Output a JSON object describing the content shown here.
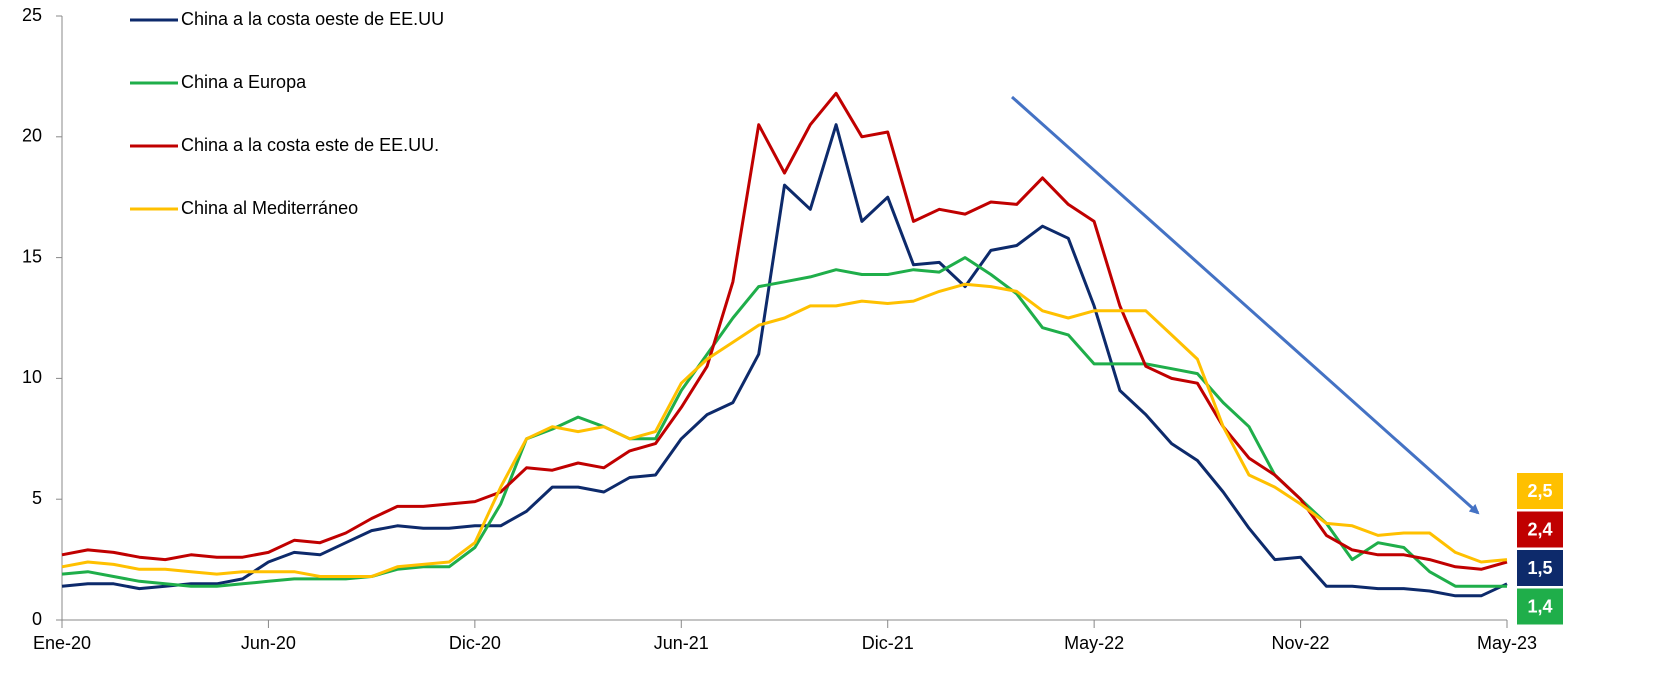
{
  "chart_data": {
    "type": "line",
    "categories": [
      "Ene-20",
      null,
      null,
      null,
      null,
      null,
      null,
      null,
      "Jun-20",
      null,
      null,
      null,
      null,
      null,
      null,
      null,
      "Dic-20",
      null,
      null,
      null,
      null,
      null,
      null,
      null,
      "Jun-21",
      null,
      null,
      null,
      null,
      null,
      null,
      null,
      "Dic-21",
      null,
      null,
      null,
      null,
      null,
      null,
      null,
      "May-22",
      null,
      null,
      null,
      null,
      null,
      null,
      null,
      "Nov-22",
      null,
      null,
      null,
      null,
      null,
      null,
      null,
      "May-23"
    ],
    "series": [
      {
        "name": "China a la costa oeste de EE.UU",
        "color": "#0d2a6b",
        "end_label": "1,5",
        "values": [
          1.4,
          1.5,
          1.5,
          1.3,
          1.4,
          1.5,
          1.5,
          1.7,
          2.4,
          2.8,
          2.7,
          3.2,
          3.7,
          3.9,
          3.8,
          3.8,
          3.9,
          3.9,
          4.5,
          5.5,
          5.5,
          5.3,
          5.9,
          6.0,
          7.5,
          8.5,
          9.0,
          11,
          18,
          17,
          20.5,
          16.5,
          17.5,
          14.7,
          14.8,
          13.8,
          15.3,
          15.5,
          16.3,
          15.8,
          13.0,
          9.5,
          8.5,
          7.3,
          6.6,
          5.3,
          3.8,
          2.5,
          2.6,
          1.4,
          1.4,
          1.3,
          1.3,
          1.2,
          1.0,
          1.0,
          1.5
        ]
      },
      {
        "name": "China a Europa",
        "color": "#1fae4a",
        "end_label": "1,4",
        "values": [
          1.9,
          2.0,
          1.8,
          1.6,
          1.5,
          1.4,
          1.4,
          1.5,
          1.6,
          1.7,
          1.7,
          1.7,
          1.8,
          2.1,
          2.2,
          2.2,
          3.0,
          4.8,
          7.5,
          7.9,
          8.4,
          8.0,
          7.5,
          7.5,
          9.5,
          11,
          12.5,
          13.8,
          14.0,
          14.2,
          14.5,
          14.3,
          14.3,
          14.5,
          14.4,
          15.0,
          14.3,
          13.5,
          12.1,
          11.8,
          10.6,
          10.6,
          10.6,
          10.4,
          10.2,
          9.0,
          8.0,
          6.0,
          5.0,
          4.0,
          2.5,
          3.2,
          3.0,
          2.0,
          1.4,
          1.4,
          1.4
        ]
      },
      {
        "name": "China a la costa este de EE.UU.",
        "color": "#c00000",
        "end_label": "2,4",
        "values": [
          2.7,
          2.9,
          2.8,
          2.6,
          2.5,
          2.7,
          2.6,
          2.6,
          2.8,
          3.3,
          3.2,
          3.6,
          4.2,
          4.7,
          4.7,
          4.8,
          4.9,
          5.3,
          6.3,
          6.2,
          6.5,
          6.3,
          7.0,
          7.3,
          8.8,
          10.5,
          14,
          20.5,
          18.5,
          20.5,
          21.8,
          20.0,
          20.2,
          16.5,
          17.0,
          16.8,
          17.3,
          17.2,
          18.3,
          17.2,
          16.5,
          13.0,
          10.5,
          10.0,
          9.8,
          8.0,
          6.7,
          6.0,
          5.0,
          3.5,
          2.9,
          2.7,
          2.7,
          2.5,
          2.2,
          2.1,
          2.4
        ]
      },
      {
        "name": "China al Mediterráneo",
        "color": "#ffc000",
        "end_label": "2,5",
        "values": [
          2.2,
          2.4,
          2.3,
          2.1,
          2.1,
          2.0,
          1.9,
          2.0,
          2.0,
          2.0,
          1.8,
          1.8,
          1.8,
          2.2,
          2.3,
          2.4,
          3.2,
          5.5,
          7.5,
          8.0,
          7.8,
          8.0,
          7.5,
          7.8,
          9.8,
          10.8,
          11.5,
          12.2,
          12.5,
          13.0,
          13.0,
          13.2,
          13.1,
          13.2,
          13.6,
          13.9,
          13.8,
          13.6,
          12.8,
          12.5,
          12.8,
          12.8,
          12.8,
          11.8,
          10.8,
          8.0,
          6.0,
          5.5,
          4.8,
          4.0,
          3.9,
          3.5,
          3.6,
          3.6,
          2.8,
          2.4,
          2.5
        ]
      }
    ],
    "ylim": [
      0,
      25
    ],
    "yticks": [
      0,
      5,
      10,
      15,
      20,
      25
    ],
    "legend": "top-left"
  }
}
